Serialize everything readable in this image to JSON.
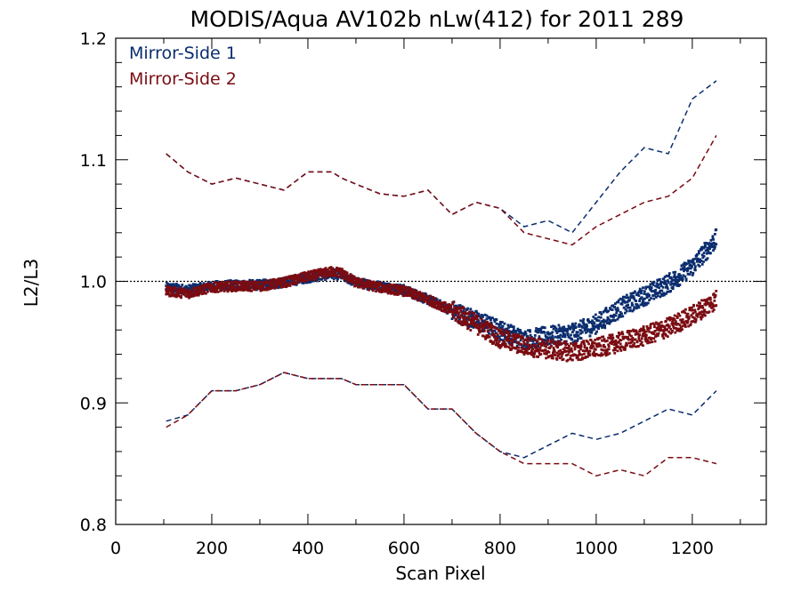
{
  "chart_data": {
    "type": "scatter",
    "title": "MODIS/Aqua AV102b nLw(412) for 2011 289",
    "xlabel": "Scan Pixel",
    "ylabel": "L2/L3",
    "xlim": [
      0,
      1354
    ],
    "ylim": [
      0.8,
      1.2
    ],
    "xticks": [
      0,
      200,
      400,
      600,
      800,
      1000,
      1200
    ],
    "yticks": [
      0.8,
      0.9,
      1.0,
      1.1,
      1.2
    ],
    "xtick_labels": [
      "0",
      "200",
      "400",
      "600",
      "800",
      "1000",
      "1200"
    ],
    "ytick_labels": [
      "0.8",
      "0.9",
      "1.0",
      "1.1",
      "1.2"
    ],
    "reference_line": 1.0,
    "legend_position": "top-left",
    "series": [
      {
        "name": "Mirror-Side 1",
        "color": "#0a2d6e",
        "x": [
          105,
          150,
          200,
          250,
          300,
          350,
          400,
          450,
          470,
          500,
          550,
          600,
          650,
          700,
          750,
          800,
          850,
          900,
          950,
          1000,
          1050,
          1100,
          1150,
          1200,
          1250
        ],
        "mean": [
          0.995,
          0.993,
          0.996,
          0.997,
          0.997,
          0.999,
          1.003,
          1.006,
          1.005,
          0.999,
          0.996,
          0.993,
          0.985,
          0.976,
          0.968,
          0.96,
          0.952,
          0.955,
          0.957,
          0.965,
          0.978,
          0.988,
          0.998,
          1.012,
          1.035
        ],
        "upper": [
          1.105,
          1.09,
          1.08,
          1.085,
          1.08,
          1.075,
          1.09,
          1.09,
          1.085,
          1.08,
          1.072,
          1.07,
          1.075,
          1.055,
          1.065,
          1.06,
          1.045,
          1.05,
          1.04,
          1.065,
          1.09,
          1.11,
          1.105,
          1.15,
          1.165
        ],
        "lower": [
          0.885,
          0.89,
          0.91,
          0.91,
          0.915,
          0.925,
          0.92,
          0.92,
          0.92,
          0.915,
          0.915,
          0.915,
          0.895,
          0.895,
          0.875,
          0.86,
          0.855,
          0.865,
          0.875,
          0.87,
          0.875,
          0.885,
          0.895,
          0.89,
          0.91
        ]
      },
      {
        "name": "Mirror-Side 2",
        "color": "#7a0c12",
        "x": [
          105,
          150,
          200,
          250,
          300,
          350,
          400,
          450,
          470,
          500,
          550,
          600,
          650,
          700,
          750,
          800,
          850,
          900,
          950,
          1000,
          1050,
          1100,
          1150,
          1200,
          1250
        ],
        "mean": [
          0.992,
          0.99,
          0.995,
          0.996,
          0.996,
          0.999,
          1.004,
          1.008,
          1.007,
          0.999,
          0.995,
          0.992,
          0.985,
          0.976,
          0.965,
          0.953,
          0.947,
          0.944,
          0.942,
          0.945,
          0.95,
          0.955,
          0.962,
          0.972,
          0.985
        ],
        "upper": [
          1.105,
          1.09,
          1.08,
          1.085,
          1.08,
          1.075,
          1.09,
          1.09,
          1.085,
          1.08,
          1.072,
          1.07,
          1.075,
          1.055,
          1.065,
          1.06,
          1.04,
          1.035,
          1.03,
          1.045,
          1.055,
          1.065,
          1.07,
          1.085,
          1.12
        ],
        "lower": [
          0.88,
          0.89,
          0.91,
          0.91,
          0.915,
          0.925,
          0.92,
          0.92,
          0.92,
          0.915,
          0.915,
          0.915,
          0.895,
          0.895,
          0.875,
          0.86,
          0.85,
          0.85,
          0.85,
          0.84,
          0.845,
          0.84,
          0.855,
          0.855,
          0.85
        ]
      }
    ]
  }
}
